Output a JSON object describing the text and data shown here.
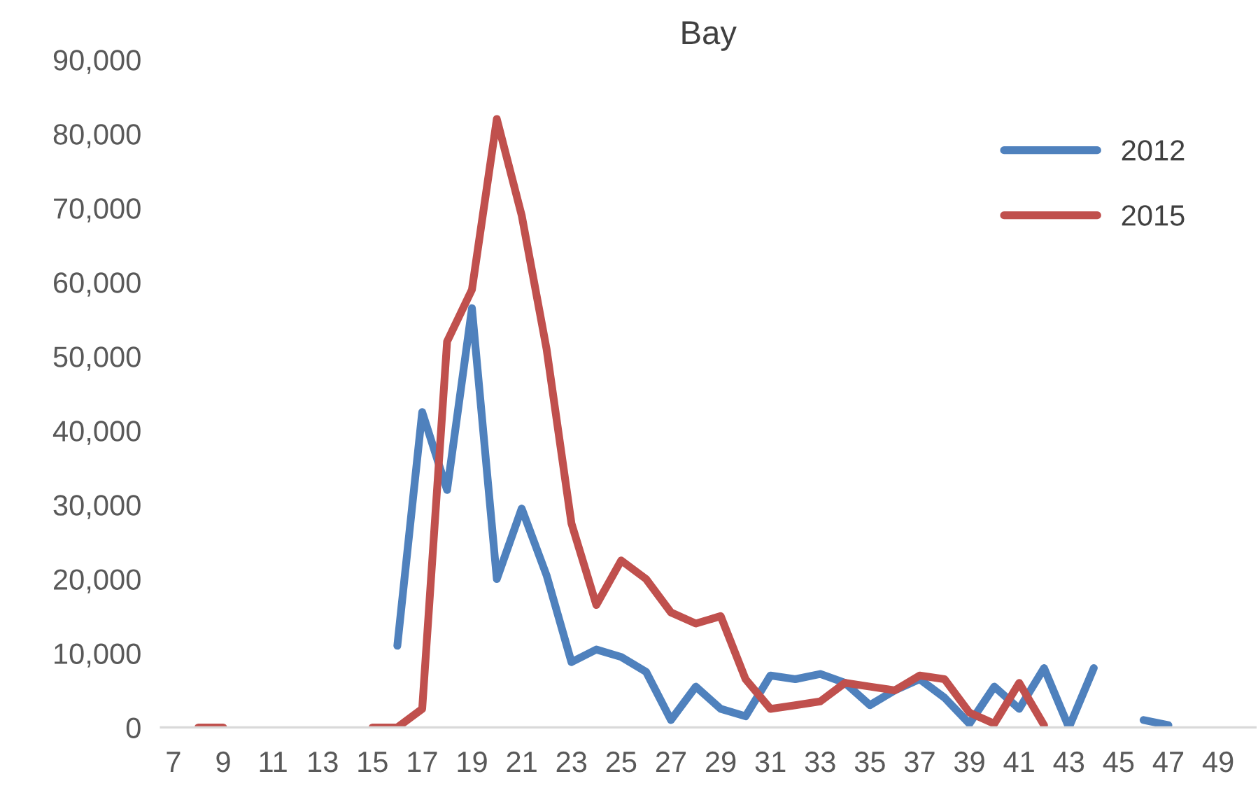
{
  "chart_data": {
    "type": "line",
    "title": "Bay",
    "categories": [
      "7",
      null,
      "9",
      null,
      "11",
      null,
      "13",
      null,
      "15",
      null,
      "17",
      null,
      "19",
      null,
      "21",
      null,
      "23",
      null,
      "25",
      null,
      "27",
      null,
      "29",
      null,
      "31",
      null,
      "33",
      null,
      "35",
      null,
      "37",
      null,
      "39",
      null,
      "41",
      null,
      "43",
      null,
      "45",
      null,
      "47",
      null,
      "49",
      null
    ],
    "series": [
      {
        "name": "2012",
        "color": "#4f81bd",
        "values": [
          null,
          null,
          null,
          null,
          null,
          null,
          null,
          null,
          null,
          11000,
          42500,
          32000,
          56500,
          20000,
          29500,
          20500,
          8800,
          10500,
          9500,
          7500,
          1000,
          5500,
          2500,
          1500,
          7000,
          6500,
          7200,
          6000,
          3000,
          5000,
          6500,
          4000,
          500,
          5500,
          2500,
          8000,
          0,
          8000,
          null,
          1000,
          300,
          null,
          null,
          null
        ]
      },
      {
        "name": "2015",
        "color": "#c0504d",
        "values": [
          null,
          0,
          0,
          null,
          null,
          null,
          null,
          null,
          0,
          0,
          2500,
          52000,
          59000,
          82000,
          69000,
          51000,
          27500,
          16500,
          22500,
          20000,
          15500,
          14000,
          15000,
          6500,
          2500,
          3000,
          3500,
          6000,
          5500,
          5000,
          7000,
          6500,
          2000,
          500,
          6000,
          300,
          null,
          null,
          null,
          null,
          null,
          null,
          null,
          null
        ]
      }
    ],
    "ylim": [
      0,
      90000
    ],
    "yticks": [
      {
        "value": 0,
        "label": "0"
      },
      {
        "value": 10000,
        "label": "10,000"
      },
      {
        "value": 20000,
        "label": "20,000"
      },
      {
        "value": 30000,
        "label": "30,000"
      },
      {
        "value": 40000,
        "label": "40,000"
      },
      {
        "value": 50000,
        "label": "50,000"
      },
      {
        "value": 60000,
        "label": "60,000"
      },
      {
        "value": 70000,
        "label": "70,000"
      },
      {
        "value": 80000,
        "label": "80,000"
      },
      {
        "value": 90000,
        "label": "90,000"
      }
    ],
    "grid": false,
    "legend": "top right",
    "marker": "none",
    "line_style": "solid"
  }
}
